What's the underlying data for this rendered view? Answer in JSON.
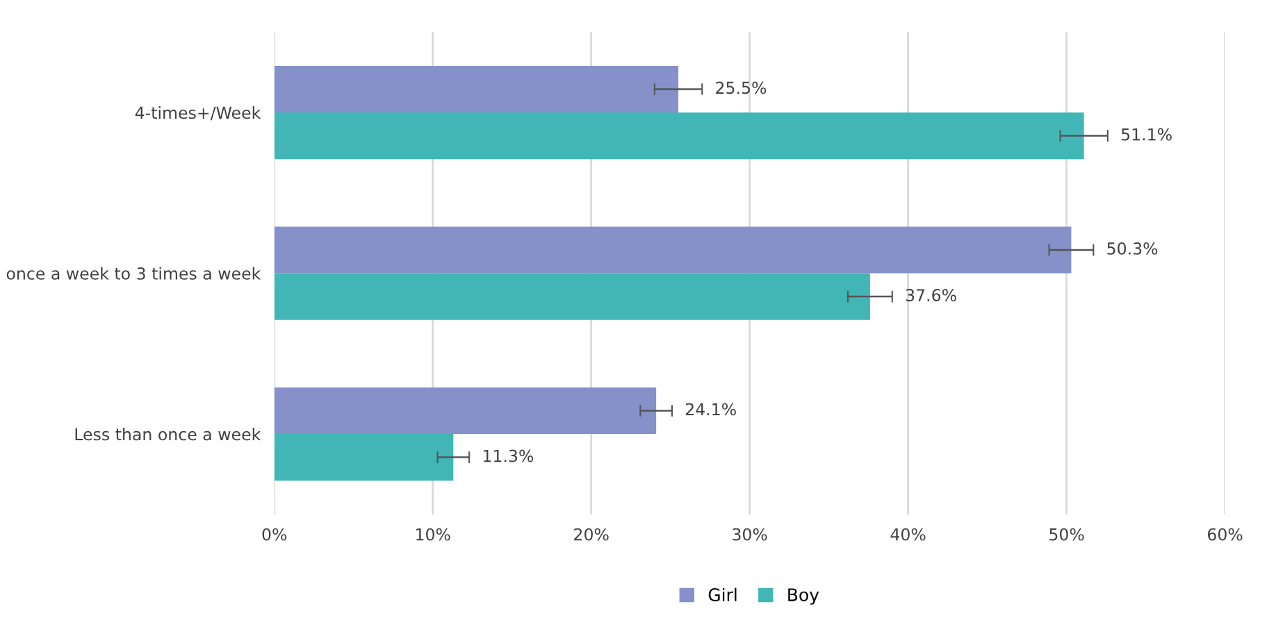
{
  "chart_data": {
    "type": "bar",
    "orientation": "horizontal",
    "categories": [
      "4-times+/Week",
      "once a week to 3 times a week",
      "Less than once a week"
    ],
    "series": [
      {
        "name": "Girl",
        "color": "#8591c8",
        "values": [
          25.5,
          50.3,
          24.1
        ],
        "errors": [
          1.5,
          1.4,
          1.0
        ],
        "value_labels": [
          "25.5%",
          "50.3%",
          "24.1%"
        ]
      },
      {
        "name": "Boy",
        "color": "#42b6b6",
        "values": [
          51.1,
          37.6,
          11.3
        ],
        "errors": [
          1.5,
          1.4,
          1.0
        ],
        "value_labels": [
          "51.1%",
          "37.6%",
          "11.3%"
        ]
      }
    ],
    "xlim": [
      0,
      60
    ],
    "xticks": [
      {
        "value": 0,
        "label": "0%"
      },
      {
        "value": 10,
        "label": "10%"
      },
      {
        "value": 20,
        "label": "20%"
      },
      {
        "value": 30,
        "label": "30%"
      },
      {
        "value": 40,
        "label": "40%"
      },
      {
        "value": 50,
        "label": "50%"
      },
      {
        "value": 60,
        "label": "60%"
      }
    ],
    "grid": "x",
    "legend": "bottom"
  }
}
